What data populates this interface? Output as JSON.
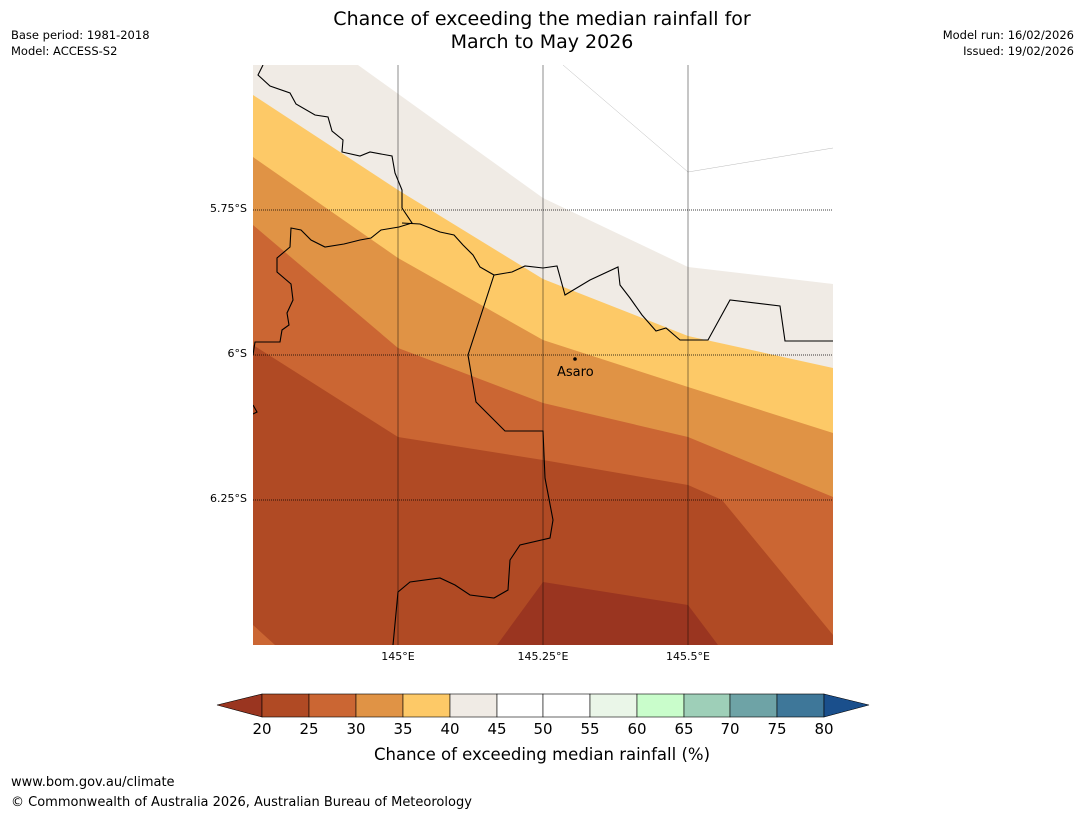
{
  "header": {
    "title_line1": "Chance of exceeding the median rainfall for",
    "title_line2": "March to May 2026",
    "base_period": "Base period: 1981-2018",
    "model": "Model: ACCESS-S2",
    "model_run": "Model run: 16/02/2026",
    "issued": "Issued: 19/02/2026"
  },
  "map": {
    "lat_labels": [
      "5.75°S",
      "6°S",
      "6.25°S"
    ],
    "lon_labels": [
      "145°E",
      "145.25°E",
      "145.5°E"
    ],
    "place": {
      "name": "Asaro"
    },
    "colors": {
      "20_25": "#b04a24",
      "25_30": "#cb6633",
      "30_35": "#e09345",
      "35_40": "#fdc967",
      "40_45": "#f0ebe5",
      "45_55": "#ffffff",
      "below_20": "#9a3520"
    }
  },
  "colorbar": {
    "ticks": [
      "20",
      "25",
      "30",
      "35",
      "40",
      "45",
      "50",
      "55",
      "60",
      "65",
      "70",
      "75",
      "80"
    ],
    "colors": [
      "#9a3520",
      "#b04a24",
      "#cb6633",
      "#e09345",
      "#fdc967",
      "#f0ebe5",
      "#ffffff",
      "#ffffff",
      "#eaf6e8",
      "#c9fdcb",
      "#9ecfb8",
      "#6ea3a6",
      "#3e7799",
      "#1a4f8c"
    ],
    "title": "Chance of exceeding median rainfall (%)"
  },
  "footer": {
    "url": "www.bom.gov.au/climate",
    "copyright": "© Commonwealth of Australia 2026, Australian Bureau of Meteorology"
  }
}
